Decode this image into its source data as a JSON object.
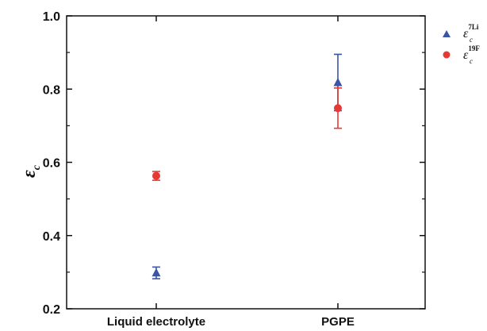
{
  "chart_data": {
    "type": "scatter",
    "categories": [
      "Liquid electrolyte",
      "PGPE"
    ],
    "ylabel": {
      "symbol": "ε",
      "subscript": "c"
    },
    "ylim": [
      0.2,
      1.0
    ],
    "yticks": [
      "0.2",
      "0.4",
      "0.6",
      "0.8",
      "1.0"
    ],
    "grid": false,
    "legend_position": "top-right outside",
    "series": [
      {
        "name": {
          "symbol": "ε",
          "superscript": "7Li",
          "subscript": "c"
        },
        "marker": "triangle",
        "color": "#3b55a6",
        "values": [
          0.298,
          0.818
        ],
        "errors": [
          0.016,
          0.077
        ]
      },
      {
        "name": {
          "symbol": "ε",
          "superscript": "19F",
          "subscript": "c"
        },
        "marker": "circle",
        "color": "#e53935",
        "values": [
          0.563,
          0.748
        ],
        "errors": [
          0.012,
          0.055
        ]
      }
    ]
  }
}
